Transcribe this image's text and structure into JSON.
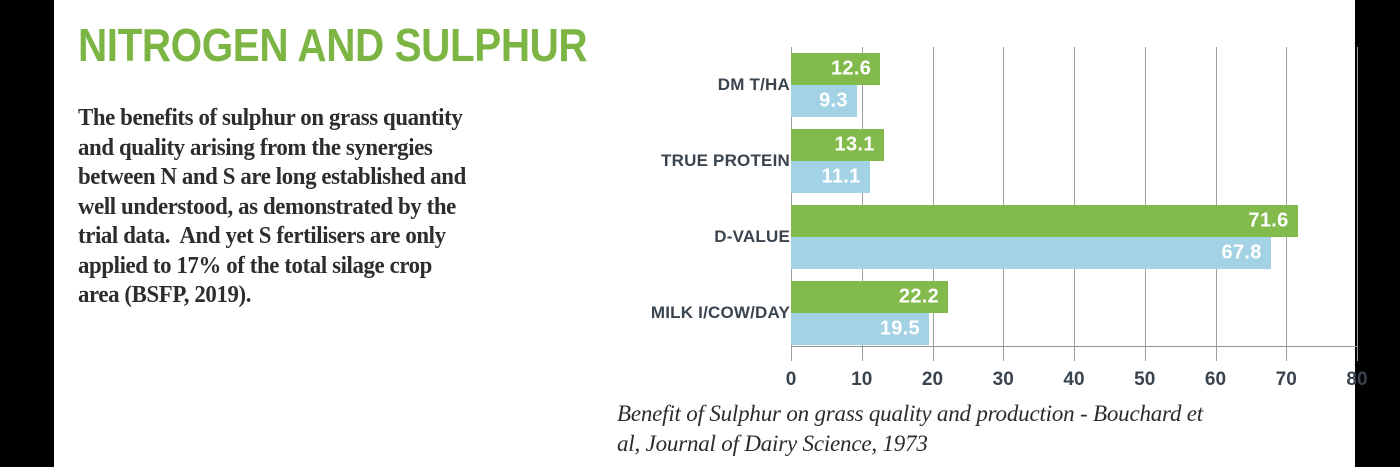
{
  "page": {
    "background_color": "#ffffff",
    "side_stripe_color": "#000000"
  },
  "intro": {
    "title": "NITROGEN AND SULPHUR",
    "title_color": "#7db544",
    "paragraph_lines": [
      "The benefits of sulphur on grass quantity",
      "and quality arising from the synergies",
      "between N and S are long established and",
      "well understood, as demonstrated by the",
      "trial data.  And yet S fertilisers are only",
      "applied to 17% of the total silage crop",
      "area (BSFP, 2019)."
    ]
  },
  "chart_data": {
    "type": "bar",
    "orientation": "horizontal",
    "title": "Benefit of Sulphur on grass quality and production - Bouchard et al, Journal of Dairy Science, 1973",
    "xlabel": "",
    "ylabel": "",
    "categories": [
      "DM T/HA",
      "TRUE PROTEIN",
      "D-VALUE",
      "MILK I/COW/DAY"
    ],
    "series": [
      {
        "id": "green",
        "color": "#82ba4b",
        "values": [
          12.6,
          13.1,
          71.6,
          22.2
        ]
      },
      {
        "id": "blue",
        "color": "#a3d2e5",
        "values": [
          9.3,
          11.1,
          67.8,
          19.5
        ]
      }
    ],
    "value_labels": true,
    "value_label_color": "#ffffff",
    "xlim": [
      0,
      80
    ],
    "xticks": [
      "0",
      "10",
      "20",
      "30",
      "40",
      "50",
      "60",
      "70",
      "80"
    ],
    "grid": true,
    "gridline_color": "#9aa0a0",
    "legend": false,
    "category_label_color": "#3a444e",
    "tick_label_color": "#3a444e"
  },
  "caption": {
    "lines": [
      "Benefit of Sulphur on grass quality and production - Bouchard et",
      "al, Journal of Dairy Science, 1973"
    ]
  }
}
